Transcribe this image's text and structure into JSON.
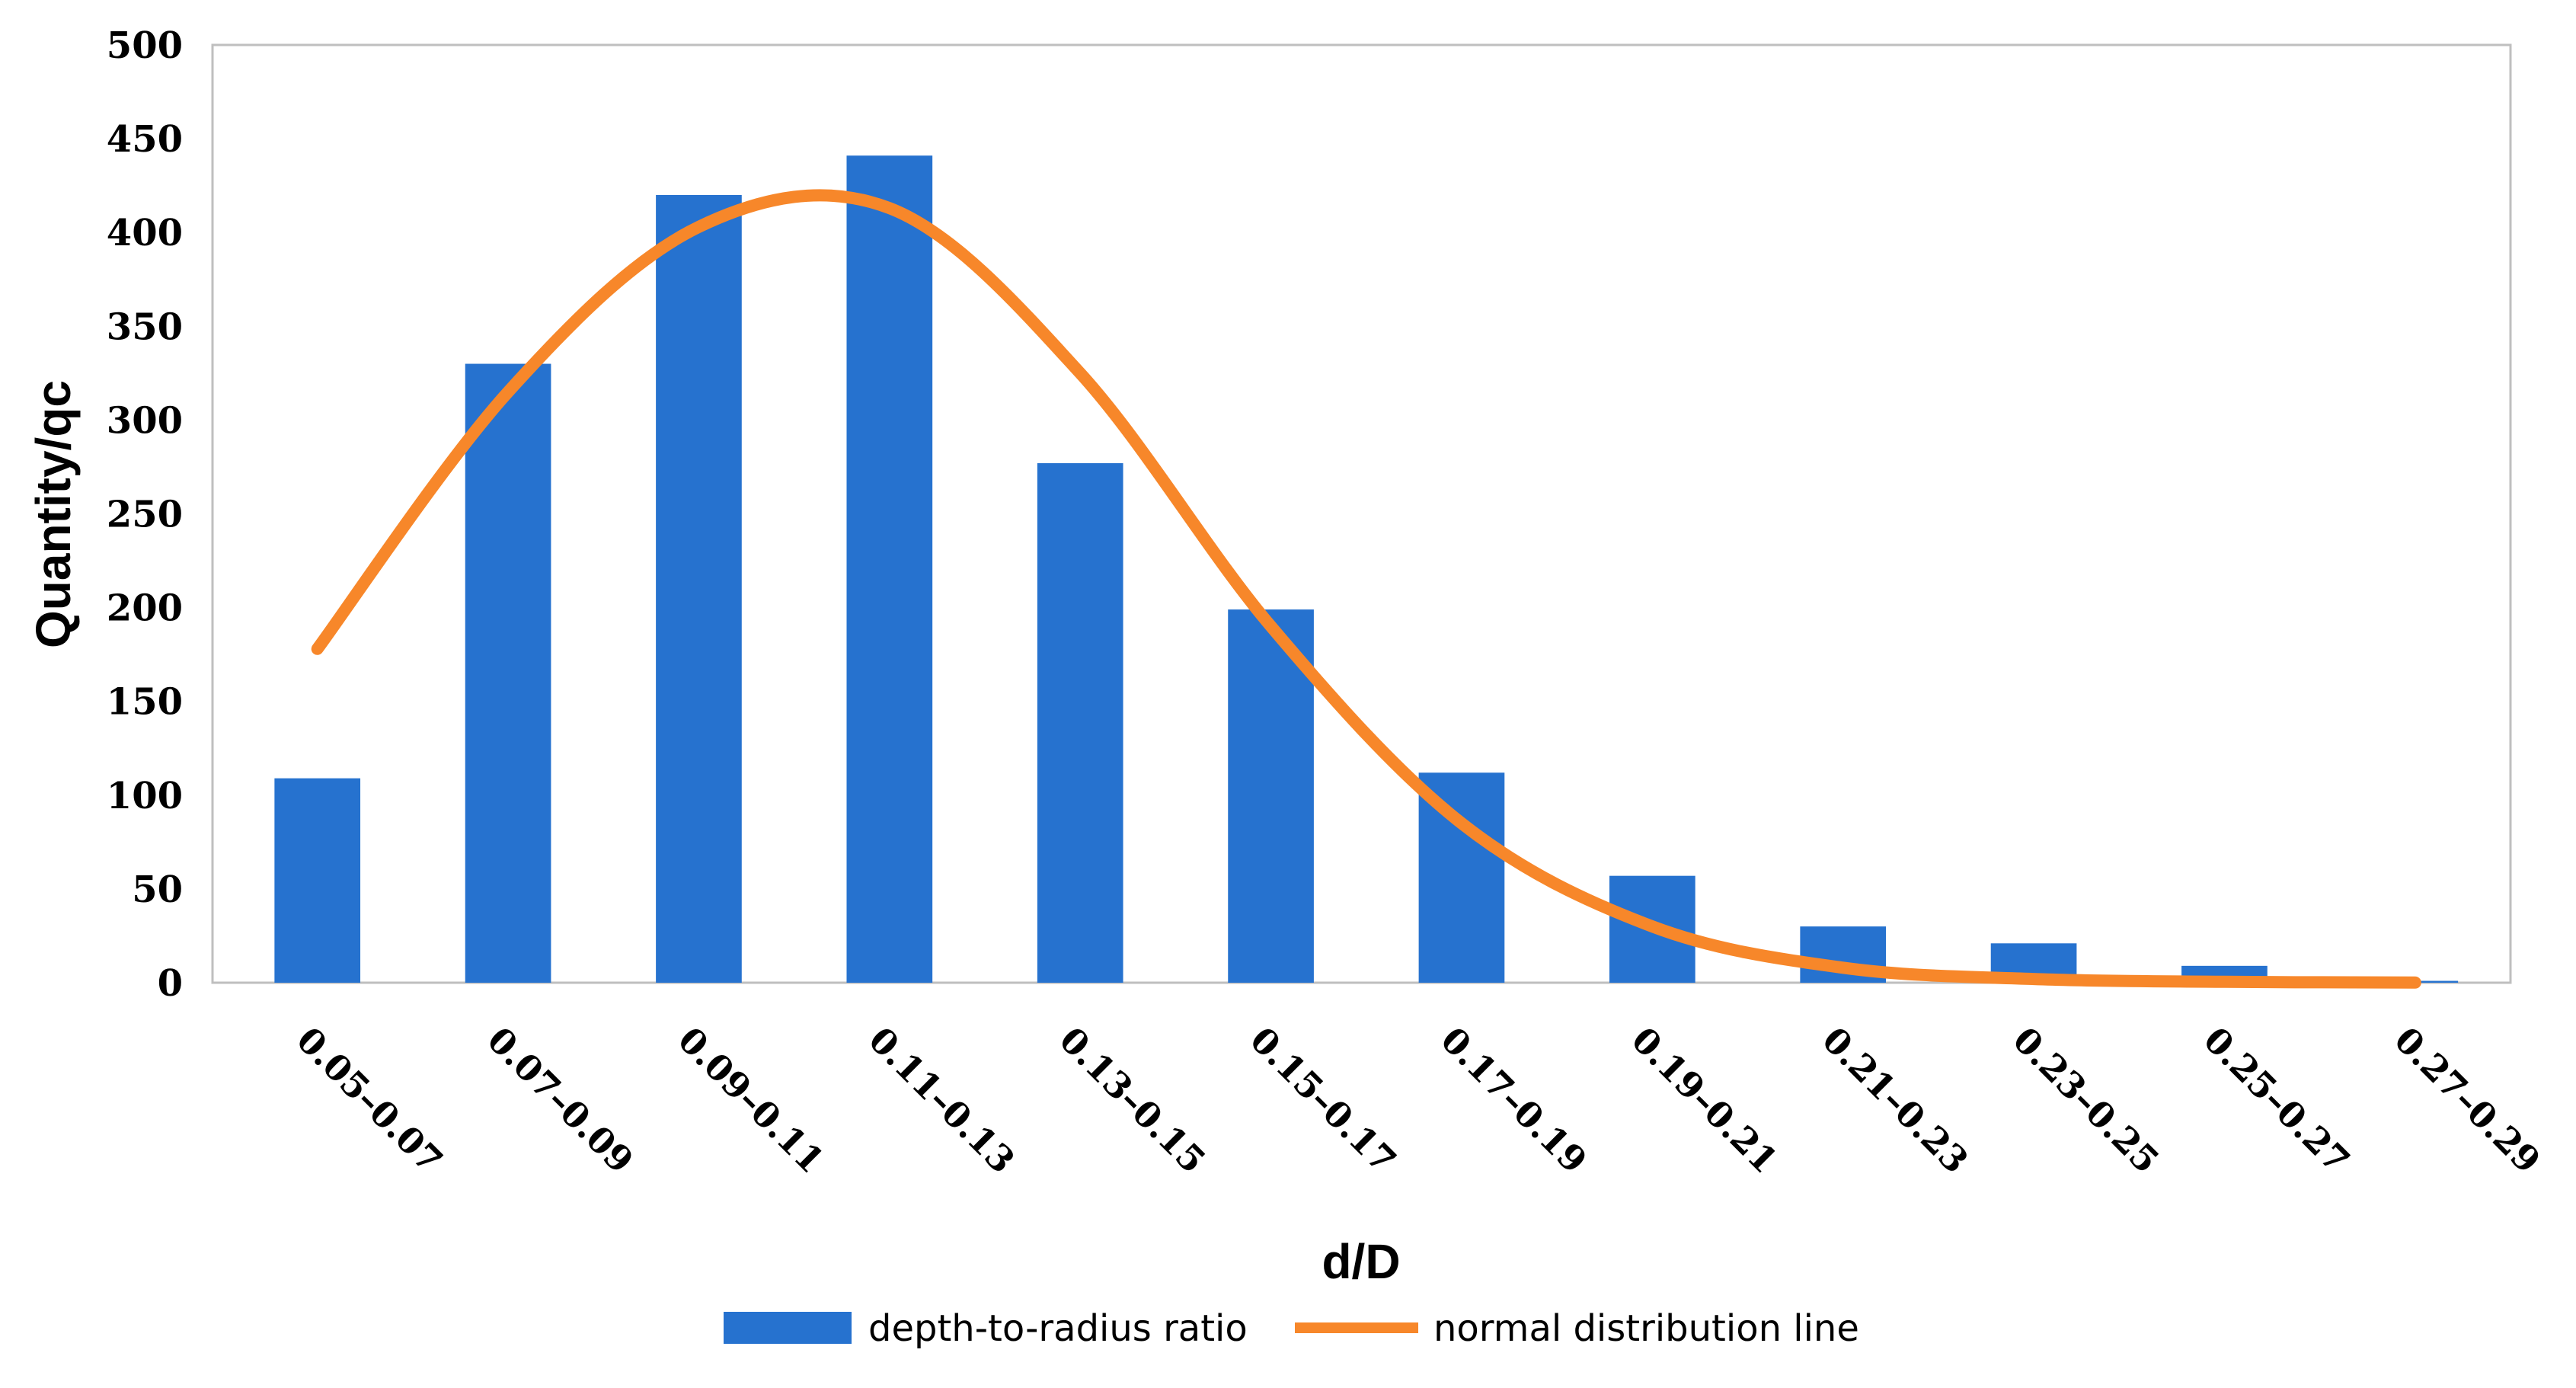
{
  "chart_data": {
    "type": "bar",
    "categories": [
      "0.05–0.07",
      "0.07–0.09",
      "0.09–0.11",
      "0.11–0.13",
      "0.13–0.15",
      "0.15–0.17",
      "0.17–0.19",
      "0.19–0.21",
      "0.21–0.23",
      "0.23–0.25",
      "0.25–0.27",
      "0.27–0.29"
    ],
    "series": [
      {
        "name": "depth-to-radius ratio",
        "kind": "bar",
        "color": "#2672cf",
        "values": [
          109,
          330,
          420,
          441,
          277,
          199,
          112,
          57,
          30,
          21,
          9,
          1
        ]
      },
      {
        "name": "normal distribution line",
        "kind": "line",
        "color": "#f7872a",
        "values": [
          178,
          315,
          403,
          413,
          325,
          190,
          85,
          30,
          8,
          2,
          0.5,
          0.1
        ]
      }
    ],
    "title": "",
    "xlabel": "d/D",
    "ylabel": "Quantity/qc",
    "ylim": [
      0,
      500
    ],
    "yticks": [
      0,
      50,
      100,
      150,
      200,
      250,
      300,
      350,
      400,
      450,
      500
    ],
    "grid": false,
    "legend": "bottom-center"
  }
}
